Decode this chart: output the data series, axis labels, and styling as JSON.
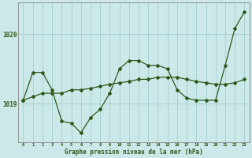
{
  "x": [
    0,
    1,
    2,
    3,
    4,
    5,
    6,
    7,
    8,
    9,
    10,
    11,
    12,
    13,
    14,
    15,
    16,
    17,
    18,
    19,
    20,
    21,
    22,
    23
  ],
  "y_trend": [
    1019.05,
    1019.1,
    1019.15,
    1019.15,
    1019.15,
    1019.2,
    1019.2,
    1019.22,
    1019.25,
    1019.28,
    1019.3,
    1019.32,
    1019.35,
    1019.35,
    1019.38,
    1019.38,
    1019.38,
    1019.35,
    1019.32,
    1019.3,
    1019.28,
    1019.28,
    1019.3,
    1019.35
  ],
  "y_actual": [
    1019.05,
    1019.45,
    1019.45,
    1019.2,
    1018.75,
    1018.72,
    1018.58,
    1018.8,
    1018.92,
    1019.15,
    1019.5,
    1019.62,
    1019.62,
    1019.55,
    1019.55,
    1019.5,
    1019.2,
    1019.08,
    1019.05,
    1019.05,
    1019.05,
    1019.55,
    1020.08,
    1020.32
  ],
  "background_color": "#cce8e8",
  "line_color": "#2d5a1b",
  "grid_color": "#99cccc",
  "xlabel": "Graphe pression niveau de la mer (hPa)",
  "ylim": [
    1018.45,
    1020.45
  ],
  "yticks": [
    1019,
    1020
  ],
  "ytick_labels": [
    "1019",
    "1020"
  ]
}
